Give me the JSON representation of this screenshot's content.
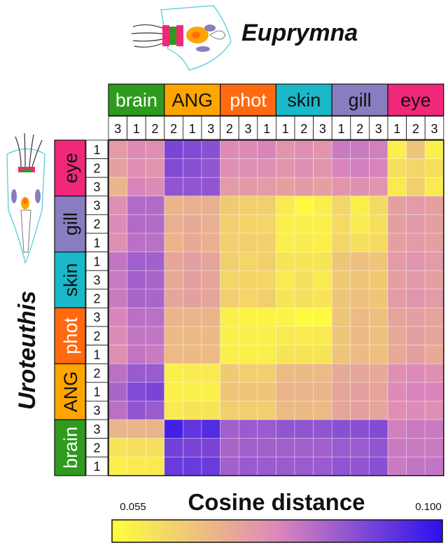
{
  "chart_data": {
    "type": "heatmap",
    "title_top": "Euprymna",
    "title_left": "Uroteuthis",
    "colorbar": {
      "label": "Cosine distance",
      "min_label": "0.055",
      "max_label": "0.100",
      "vmin": 0.055,
      "vmax": 0.1,
      "colors": {
        "low": "#ffff3a",
        "mid": "#dd88bb",
        "high": "#2a10ee"
      }
    },
    "columns": {
      "groups": [
        {
          "name": "brain",
          "color": "#2e9a1e",
          "text_color": "#ffffff",
          "reps": [
            "3",
            "1",
            "2"
          ]
        },
        {
          "name": "ANG",
          "color": "#ffa500",
          "text_color": "#111111",
          "reps": [
            "2",
            "1",
            "3"
          ]
        },
        {
          "name": "phot",
          "color": "#ff6a10",
          "text_color": "#ffffff",
          "reps": [
            "2",
            "3",
            "1"
          ]
        },
        {
          "name": "skin",
          "color": "#1ab8c8",
          "text_color": "#111111",
          "reps": [
            "1",
            "2",
            "3"
          ]
        },
        {
          "name": "gill",
          "color": "#8a7cc0",
          "text_color": "#111111",
          "reps": [
            "1",
            "2",
            "3"
          ]
        },
        {
          "name": "eye",
          "color": "#f0287a",
          "text_color": "#111111",
          "reps": [
            "1",
            "2",
            "3"
          ]
        }
      ]
    },
    "rows": {
      "groups": [
        {
          "name": "eye",
          "color": "#f0287a",
          "text_color": "#111111",
          "reps": [
            "1",
            "2",
            "3"
          ]
        },
        {
          "name": "gill",
          "color": "#8a7cc0",
          "text_color": "#111111",
          "reps": [
            "3",
            "2",
            "1"
          ]
        },
        {
          "name": "skin",
          "color": "#1ab8c8",
          "text_color": "#111111",
          "reps": [
            "1",
            "3",
            "2"
          ]
        },
        {
          "name": "phot",
          "color": "#ff6a10",
          "text_color": "#ffffff",
          "reps": [
            "3",
            "2",
            "1"
          ]
        },
        {
          "name": "ANG",
          "color": "#ffa500",
          "text_color": "#111111",
          "reps": [
            "2",
            "1",
            "3"
          ]
        },
        {
          "name": "brain",
          "color": "#2e9a1e",
          "text_color": "#ffffff",
          "reps": [
            "3",
            "2",
            "1"
          ]
        }
      ]
    },
    "values": [
      [
        0.074,
        0.077,
        0.076,
        0.09,
        0.089,
        0.088,
        0.077,
        0.077,
        0.078,
        0.075,
        0.076,
        0.075,
        0.08,
        0.08,
        0.079,
        0.058,
        0.066,
        0.058
      ],
      [
        0.073,
        0.076,
        0.075,
        0.089,
        0.088,
        0.087,
        0.076,
        0.076,
        0.076,
        0.075,
        0.076,
        0.075,
        0.078,
        0.079,
        0.078,
        0.061,
        0.063,
        0.061
      ],
      [
        0.069,
        0.078,
        0.077,
        0.087,
        0.087,
        0.087,
        0.074,
        0.074,
        0.074,
        0.073,
        0.074,
        0.073,
        0.075,
        0.076,
        0.075,
        0.059,
        0.064,
        0.059
      ],
      [
        0.076,
        0.083,
        0.083,
        0.069,
        0.07,
        0.07,
        0.065,
        0.064,
        0.064,
        0.059,
        0.056,
        0.058,
        0.063,
        0.058,
        0.062,
        0.073,
        0.074,
        0.073
      ],
      [
        0.077,
        0.083,
        0.083,
        0.07,
        0.071,
        0.07,
        0.064,
        0.063,
        0.063,
        0.058,
        0.058,
        0.058,
        0.062,
        0.059,
        0.061,
        0.073,
        0.074,
        0.073
      ],
      [
        0.076,
        0.082,
        0.082,
        0.069,
        0.071,
        0.07,
        0.064,
        0.064,
        0.064,
        0.058,
        0.059,
        0.058,
        0.063,
        0.061,
        0.062,
        0.073,
        0.074,
        0.073
      ],
      [
        0.081,
        0.085,
        0.085,
        0.072,
        0.073,
        0.072,
        0.064,
        0.063,
        0.064,
        0.06,
        0.06,
        0.06,
        0.066,
        0.067,
        0.066,
        0.074,
        0.075,
        0.074
      ],
      [
        0.08,
        0.085,
        0.084,
        0.071,
        0.073,
        0.072,
        0.063,
        0.063,
        0.063,
        0.059,
        0.061,
        0.059,
        0.065,
        0.066,
        0.065,
        0.073,
        0.074,
        0.073
      ],
      [
        0.08,
        0.084,
        0.084,
        0.072,
        0.073,
        0.072,
        0.064,
        0.063,
        0.064,
        0.06,
        0.061,
        0.06,
        0.066,
        0.067,
        0.066,
        0.074,
        0.075,
        0.074
      ],
      [
        0.078,
        0.082,
        0.082,
        0.069,
        0.069,
        0.069,
        0.058,
        0.057,
        0.057,
        0.057,
        0.056,
        0.056,
        0.066,
        0.068,
        0.067,
        0.072,
        0.073,
        0.072
      ],
      [
        0.077,
        0.081,
        0.081,
        0.068,
        0.068,
        0.068,
        0.058,
        0.058,
        0.058,
        0.059,
        0.059,
        0.059,
        0.066,
        0.068,
        0.067,
        0.071,
        0.073,
        0.072
      ],
      [
        0.076,
        0.081,
        0.08,
        0.068,
        0.068,
        0.068,
        0.058,
        0.058,
        0.058,
        0.06,
        0.06,
        0.06,
        0.066,
        0.068,
        0.067,
        0.071,
        0.073,
        0.071
      ],
      [
        0.082,
        0.086,
        0.086,
        0.058,
        0.059,
        0.059,
        0.065,
        0.064,
        0.064,
        0.068,
        0.068,
        0.068,
        0.071,
        0.072,
        0.071,
        0.076,
        0.077,
        0.076
      ],
      [
        0.084,
        0.089,
        0.09,
        0.058,
        0.058,
        0.058,
        0.066,
        0.066,
        0.066,
        0.069,
        0.069,
        0.069,
        0.072,
        0.073,
        0.072,
        0.077,
        0.078,
        0.078
      ],
      [
        0.082,
        0.087,
        0.086,
        0.059,
        0.06,
        0.06,
        0.064,
        0.064,
        0.064,
        0.068,
        0.068,
        0.068,
        0.072,
        0.073,
        0.072,
        0.076,
        0.077,
        0.076
      ],
      [
        0.069,
        0.069,
        0.069,
        0.097,
        0.093,
        0.095,
        0.085,
        0.086,
        0.086,
        0.087,
        0.087,
        0.087,
        0.088,
        0.088,
        0.089,
        0.079,
        0.08,
        0.08
      ],
      [
        0.06,
        0.061,
        0.061,
        0.091,
        0.09,
        0.09,
        0.084,
        0.085,
        0.085,
        0.085,
        0.085,
        0.085,
        0.086,
        0.086,
        0.087,
        0.08,
        0.08,
        0.08
      ],
      [
        0.058,
        0.059,
        0.059,
        0.092,
        0.092,
        0.092,
        0.085,
        0.086,
        0.086,
        0.086,
        0.086,
        0.086,
        0.087,
        0.087,
        0.088,
        0.08,
        0.081,
        0.081
      ]
    ]
  }
}
